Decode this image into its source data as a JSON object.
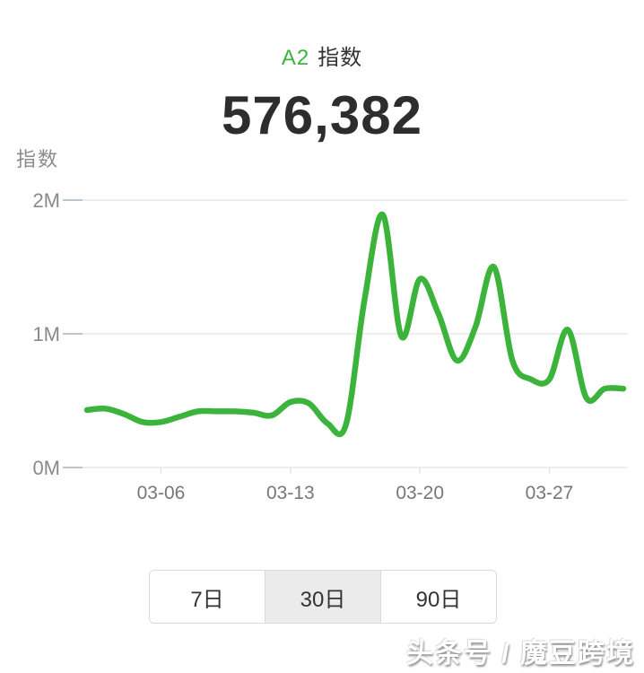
{
  "header": {
    "badge": "A2",
    "title": "指数",
    "value": "576,382",
    "axis_label": "指数"
  },
  "colors": {
    "accent_green": "#3cb43c",
    "grid_line": "#e7e7e7",
    "axis_tick": "#b9c6d2",
    "y_label_text": "#8a8a8a",
    "x_label_text": "#777777",
    "title_text": "#333333",
    "value_text": "#2d2d2d",
    "selected_bg": "#ebebeb",
    "group_border": "#d9d9d9"
  },
  "chart_data": {
    "type": "line",
    "title": "A2 指数",
    "ylabel": "指数",
    "unit": "M",
    "smooth": true,
    "grid": true,
    "legend_position": "none",
    "ylim": [
      0,
      2000000
    ],
    "y_tick_labels": [
      "0M",
      "1M",
      "2M"
    ],
    "y_tick_values": [
      0,
      1000000,
      2000000
    ],
    "x_tick_labels": [
      "03-06",
      "03-13",
      "03-20",
      "03-27"
    ],
    "x": [
      "03-02",
      "03-03",
      "03-04",
      "03-05",
      "03-06",
      "03-07",
      "03-08",
      "03-09",
      "03-10",
      "03-11",
      "03-12",
      "03-13",
      "03-14",
      "03-15",
      "03-16",
      "03-17",
      "03-18",
      "03-19",
      "03-20",
      "03-21",
      "03-22",
      "03-23",
      "03-24",
      "03-25",
      "03-26",
      "03-27",
      "03-28",
      "03-29",
      "03-30",
      "03-31"
    ],
    "values": [
      430000,
      440000,
      400000,
      340000,
      340000,
      380000,
      420000,
      420000,
      420000,
      410000,
      390000,
      490000,
      480000,
      330000,
      320000,
      1250000,
      1890000,
      980000,
      1410000,
      1150000,
      800000,
      1050000,
      1500000,
      800000,
      660000,
      660000,
      1030000,
      520000,
      590000,
      590000
    ],
    "line_color": "#3cb43c"
  },
  "period_selector": {
    "options": [
      {
        "key": "7d",
        "label": "7日",
        "selected": false
      },
      {
        "key": "30d",
        "label": "30日",
        "selected": true
      },
      {
        "key": "90d",
        "label": "90日",
        "selected": false
      }
    ]
  },
  "watermark": "头条号 / 魔豆跨境"
}
